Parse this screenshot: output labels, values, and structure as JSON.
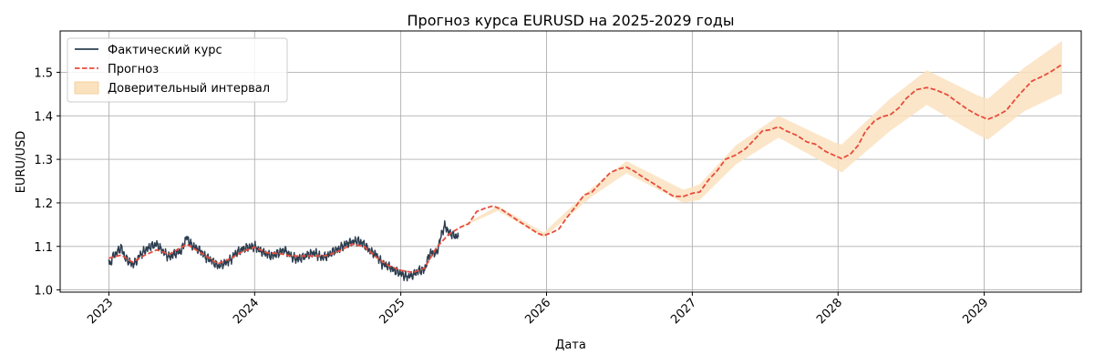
{
  "chart_data": {
    "type": "line",
    "title": "Прогноз курса EURUSD на 2025-2029 годы",
    "xlabel": "Дата",
    "ylabel": "EURU/USD",
    "xlim": [
      "2022-09-01",
      "2029-09-01"
    ],
    "ylim": [
      0.995,
      1.595
    ],
    "x_ticks": [
      "2023",
      "2024",
      "2025",
      "2026",
      "2027",
      "2028",
      "2029"
    ],
    "y_ticks": [
      "1.0",
      "1.1",
      "1.2",
      "1.3",
      "1.4",
      "1.5"
    ],
    "grid": true,
    "legend_position": "top-left",
    "colors": {
      "actual": "#2c3e50",
      "forecast": "#e74c3c",
      "band": "#fbe2bf"
    },
    "series": [
      {
        "name": "Фактический курс",
        "style": "solid",
        "points": [
          [
            "2023-01-01",
            1.068
          ],
          [
            "2023-01-03",
            1.055
          ],
          [
            "2023-01-10",
            1.075
          ],
          [
            "2023-01-20",
            1.085
          ],
          [
            "2023-02-01",
            1.098
          ],
          [
            "2023-02-10",
            1.075
          ],
          [
            "2023-02-20",
            1.066
          ],
          [
            "2023-03-01",
            1.058
          ],
          [
            "2023-03-10",
            1.065
          ],
          [
            "2023-03-20",
            1.08
          ],
          [
            "2023-04-01",
            1.09
          ],
          [
            "2023-04-15",
            1.1
          ],
          [
            "2023-05-01",
            1.105
          ],
          [
            "2023-05-15",
            1.09
          ],
          [
            "2023-06-01",
            1.075
          ],
          [
            "2023-06-15",
            1.083
          ],
          [
            "2023-07-01",
            1.09
          ],
          [
            "2023-07-10",
            1.11
          ],
          [
            "2023-07-15",
            1.122
          ],
          [
            "2023-07-25",
            1.105
          ],
          [
            "2023-08-05",
            1.098
          ],
          [
            "2023-08-20",
            1.088
          ],
          [
            "2023-09-01",
            1.075
          ],
          [
            "2023-09-15",
            1.068
          ],
          [
            "2023-10-01",
            1.055
          ],
          [
            "2023-10-15",
            1.06
          ],
          [
            "2023-11-01",
            1.068
          ],
          [
            "2023-11-15",
            1.085
          ],
          [
            "2023-12-01",
            1.093
          ],
          [
            "2023-12-15",
            1.098
          ],
          [
            "2024-01-01",
            1.1
          ],
          [
            "2024-01-15",
            1.09
          ],
          [
            "2024-02-01",
            1.082
          ],
          [
            "2024-02-15",
            1.078
          ],
          [
            "2024-03-01",
            1.085
          ],
          [
            "2024-03-15",
            1.092
          ],
          [
            "2024-04-01",
            1.078
          ],
          [
            "2024-04-15",
            1.07
          ],
          [
            "2024-05-01",
            1.075
          ],
          [
            "2024-05-15",
            1.082
          ],
          [
            "2024-06-01",
            1.085
          ],
          [
            "2024-06-15",
            1.075
          ],
          [
            "2024-07-01",
            1.078
          ],
          [
            "2024-07-15",
            1.088
          ],
          [
            "2024-08-01",
            1.095
          ],
          [
            "2024-08-15",
            1.105
          ],
          [
            "2024-09-01",
            1.11
          ],
          [
            "2024-09-15",
            1.113
          ],
          [
            "2024-10-01",
            1.105
          ],
          [
            "2024-10-15",
            1.09
          ],
          [
            "2024-11-01",
            1.08
          ],
          [
            "2024-11-15",
            1.06
          ],
          [
            "2024-12-01",
            1.055
          ],
          [
            "2024-12-15",
            1.045
          ],
          [
            "2025-01-01",
            1.038
          ],
          [
            "2025-01-15",
            1.03
          ],
          [
            "2025-02-01",
            1.035
          ],
          [
            "2025-02-15",
            1.045
          ],
          [
            "2025-03-01",
            1.045
          ],
          [
            "2025-03-15",
            1.085
          ],
          [
            "2025-04-01",
            1.085
          ],
          [
            "2025-04-15",
            1.135
          ],
          [
            "2025-04-22",
            1.148
          ],
          [
            "2025-05-01",
            1.132
          ],
          [
            "2025-05-15",
            1.125
          ],
          [
            "2025-05-25",
            1.122
          ]
        ]
      },
      {
        "name": "Прогноз",
        "style": "dashed",
        "points": [
          [
            "2023-01-01",
            1.073
          ],
          [
            "2023-02-01",
            1.08
          ],
          [
            "2023-03-01",
            1.064
          ],
          [
            "2023-04-01",
            1.08
          ],
          [
            "2023-05-01",
            1.092
          ],
          [
            "2023-06-01",
            1.082
          ],
          [
            "2023-07-15",
            1.105
          ],
          [
            "2023-09-01",
            1.078
          ],
          [
            "2023-10-01",
            1.06
          ],
          [
            "2023-11-01",
            1.072
          ],
          [
            "2023-12-01",
            1.088
          ],
          [
            "2024-01-01",
            1.098
          ],
          [
            "2024-02-01",
            1.085
          ],
          [
            "2024-03-01",
            1.084
          ],
          [
            "2024-04-01",
            1.078
          ],
          [
            "2024-05-01",
            1.078
          ],
          [
            "2024-06-01",
            1.078
          ],
          [
            "2024-07-01",
            1.079
          ],
          [
            "2024-08-01",
            1.09
          ],
          [
            "2024-09-01",
            1.105
          ],
          [
            "2024-10-01",
            1.1
          ],
          [
            "2024-11-01",
            1.075
          ],
          [
            "2024-12-01",
            1.056
          ],
          [
            "2025-01-01",
            1.045
          ],
          [
            "2025-02-01",
            1.04
          ],
          [
            "2025-03-01",
            1.05
          ],
          [
            "2025-04-01",
            1.098
          ],
          [
            "2025-05-01",
            1.128
          ],
          [
            "2025-06-01",
            1.145
          ],
          [
            "2025-06-20",
            1.152
          ],
          [
            "2025-07-10",
            1.18
          ],
          [
            "2025-08-01",
            1.188
          ],
          [
            "2025-08-20",
            1.193
          ],
          [
            "2025-09-10",
            1.185
          ],
          [
            "2025-10-01",
            1.172
          ],
          [
            "2025-10-20",
            1.16
          ],
          [
            "2025-11-15",
            1.145
          ],
          [
            "2025-12-10",
            1.13
          ],
          [
            "2025-12-25",
            1.125
          ],
          [
            "2026-01-15",
            1.132
          ],
          [
            "2026-02-01",
            1.14
          ],
          [
            "2026-02-20",
            1.165
          ],
          [
            "2026-03-15",
            1.192
          ],
          [
            "2026-04-05",
            1.218
          ],
          [
            "2026-04-25",
            1.225
          ],
          [
            "2026-05-20",
            1.25
          ],
          [
            "2026-06-10",
            1.27
          ],
          [
            "2026-07-01",
            1.278
          ],
          [
            "2026-07-20",
            1.282
          ],
          [
            "2026-08-10",
            1.272
          ],
          [
            "2026-09-01",
            1.258
          ],
          [
            "2026-09-25",
            1.245
          ],
          [
            "2026-10-20",
            1.23
          ],
          [
            "2026-11-15",
            1.215
          ],
          [
            "2026-12-10",
            1.215
          ],
          [
            "2027-01-01",
            1.222
          ],
          [
            "2027-01-20",
            1.225
          ],
          [
            "2027-02-10",
            1.252
          ],
          [
            "2027-03-05",
            1.275
          ],
          [
            "2027-03-25",
            1.3
          ],
          [
            "2027-04-20",
            1.31
          ],
          [
            "2027-05-15",
            1.325
          ],
          [
            "2027-06-05",
            1.345
          ],
          [
            "2027-06-25",
            1.365
          ],
          [
            "2027-07-15",
            1.368
          ],
          [
            "2027-08-05",
            1.375
          ],
          [
            "2027-08-25",
            1.365
          ],
          [
            "2027-09-20",
            1.355
          ],
          [
            "2027-10-15",
            1.34
          ],
          [
            "2027-11-05",
            1.335
          ],
          [
            "2027-12-01",
            1.318
          ],
          [
            "2027-12-25",
            1.308
          ],
          [
            "2028-01-10",
            1.302
          ],
          [
            "2028-02-01",
            1.312
          ],
          [
            "2028-02-20",
            1.332
          ],
          [
            "2028-03-10",
            1.365
          ],
          [
            "2028-04-01",
            1.388
          ],
          [
            "2028-04-20",
            1.398
          ],
          [
            "2028-05-10",
            1.402
          ],
          [
            "2028-06-01",
            1.418
          ],
          [
            "2028-06-20",
            1.44
          ],
          [
            "2028-07-15",
            1.46
          ],
          [
            "2028-08-10",
            1.465
          ],
          [
            "2028-09-01",
            1.46
          ],
          [
            "2028-10-01",
            1.448
          ],
          [
            "2028-10-25",
            1.432
          ],
          [
            "2028-11-20",
            1.415
          ],
          [
            "2028-12-15",
            1.402
          ],
          [
            "2029-01-10",
            1.392
          ],
          [
            "2029-02-01",
            1.4
          ],
          [
            "2029-02-25",
            1.412
          ],
          [
            "2029-03-20",
            1.438
          ],
          [
            "2029-04-10",
            1.46
          ],
          [
            "2029-05-01",
            1.48
          ],
          [
            "2029-05-25",
            1.49
          ],
          [
            "2029-06-15",
            1.5
          ],
          [
            "2029-07-01",
            1.51
          ],
          [
            "2029-07-15",
            1.518
          ]
        ]
      },
      {
        "name": "Доверительный интервал",
        "style": "band",
        "points": [
          [
            "2025-06-01",
            1.143,
            1.147
          ],
          [
            "2025-09-01",
            1.182,
            1.193
          ],
          [
            "2025-12-25",
            1.12,
            1.132
          ],
          [
            "2026-04-25",
            1.215,
            1.235
          ],
          [
            "2026-07-20",
            1.268,
            1.296
          ],
          [
            "2026-12-10",
            1.2,
            1.23
          ],
          [
            "2027-01-20",
            1.207,
            1.243
          ],
          [
            "2027-04-20",
            1.288,
            1.332
          ],
          [
            "2027-08-05",
            1.35,
            1.4
          ],
          [
            "2027-12-25",
            1.278,
            1.338
          ],
          [
            "2028-01-10",
            1.27,
            1.334
          ],
          [
            "2028-05-10",
            1.365,
            1.439
          ],
          [
            "2028-08-10",
            1.425,
            1.505
          ],
          [
            "2028-12-15",
            1.357,
            1.447
          ],
          [
            "2029-01-10",
            1.345,
            1.439
          ],
          [
            "2029-04-10",
            1.41,
            1.51
          ],
          [
            "2029-07-15",
            1.452,
            1.572
          ]
        ]
      }
    ]
  }
}
